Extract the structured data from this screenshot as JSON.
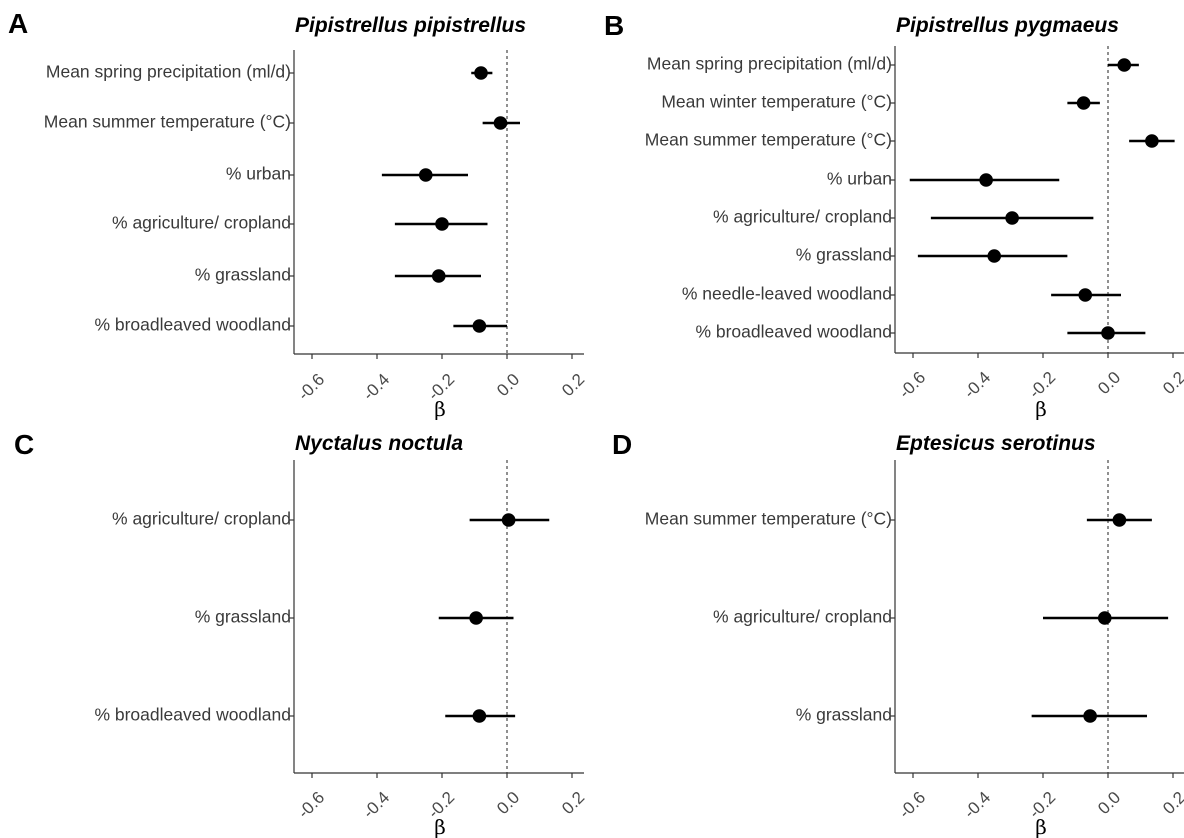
{
  "colors": {
    "marker": "#000000",
    "axis": "#333333",
    "reference_line": "#555555",
    "tick_text": "#4a4a4a"
  },
  "chart_data": [
    {
      "type": "scatter",
      "panel_letter": "A",
      "title": "Pipistrellus pipistrellus",
      "xlabel": "β",
      "xlim": [
        -0.65,
        0.23
      ],
      "xticks": [
        "-0.6",
        "-0.4",
        "-0.2",
        "0.0",
        "0.2"
      ],
      "xtick_values": [
        -0.6,
        -0.4,
        -0.2,
        0.0,
        0.2
      ],
      "reference_line_x": 0,
      "categories": [
        "Mean spring precipitation (ml/d)",
        "Mean summer temperature (°C)",
        "% urban",
        "% agriculture/ cropland",
        "% grassland",
        "% broadleaved woodland"
      ],
      "estimates": [
        -0.08,
        -0.02,
        -0.25,
        -0.2,
        -0.21,
        -0.085
      ],
      "ci_low": [
        -0.11,
        -0.075,
        -0.385,
        -0.345,
        -0.345,
        -0.165
      ],
      "ci_high": [
        -0.045,
        0.04,
        -0.12,
        -0.06,
        -0.08,
        0.0
      ]
    },
    {
      "type": "scatter",
      "panel_letter": "B",
      "title": "Pipistrellus pygmaeus",
      "xlabel": "β",
      "xlim": [
        -0.65,
        0.23
      ],
      "xticks": [
        "-0.6",
        "-0.4",
        "-0.2",
        "0.0",
        "0.2"
      ],
      "xtick_values": [
        -0.6,
        -0.4,
        -0.2,
        0.0,
        0.2
      ],
      "reference_line_x": 0,
      "categories": [
        "Mean spring precipitation (ml/d)",
        "Mean winter temperature (°C)",
        "Mean summer temperature (°C)",
        "% urban",
        "% agriculture/ cropland",
        "% grassland",
        "% needle-leaved woodland",
        "% broadleaved woodland"
      ],
      "estimates": [
        0.05,
        -0.075,
        0.135,
        -0.375,
        -0.295,
        -0.35,
        -0.07,
        0.0
      ],
      "ci_low": [
        0.0,
        -0.125,
        0.065,
        -0.61,
        -0.545,
        -0.585,
        -0.175,
        -0.125
      ],
      "ci_high": [
        0.095,
        -0.025,
        0.205,
        -0.15,
        -0.045,
        -0.125,
        0.04,
        0.115
      ]
    },
    {
      "type": "scatter",
      "panel_letter": "C",
      "title": "Nyctalus noctula",
      "xlabel": "β",
      "xlim": [
        -0.65,
        0.23
      ],
      "xticks": [
        "-0.6",
        "-0.4",
        "-0.2",
        "0.0",
        "0.2"
      ],
      "xtick_values": [
        -0.6,
        -0.4,
        -0.2,
        0.0,
        0.2
      ],
      "reference_line_x": 0,
      "categories": [
        "% agriculture/ cropland",
        "% grassland",
        "% broadleaved woodland"
      ],
      "estimates": [
        0.005,
        -0.095,
        -0.085
      ],
      "ci_low": [
        -0.115,
        -0.21,
        -0.19
      ],
      "ci_high": [
        0.13,
        0.02,
        0.025
      ]
    },
    {
      "type": "scatter",
      "panel_letter": "D",
      "title": "Eptesicus serotinus",
      "xlabel": "β",
      "xlim": [
        -0.65,
        0.23
      ],
      "xticks": [
        "-0.6",
        "-0.4",
        "-0.2",
        "0.0",
        "0.2"
      ],
      "xtick_values": [
        -0.6,
        -0.4,
        -0.2,
        0.0,
        0.2
      ],
      "reference_line_x": 0,
      "categories": [
        "Mean summer temperature (°C)",
        "% agriculture/ cropland",
        "% grassland"
      ],
      "estimates": [
        0.035,
        -0.01,
        -0.055
      ],
      "ci_low": [
        -0.065,
        -0.2,
        -0.235
      ],
      "ci_high": [
        0.135,
        0.185,
        0.12
      ]
    }
  ]
}
